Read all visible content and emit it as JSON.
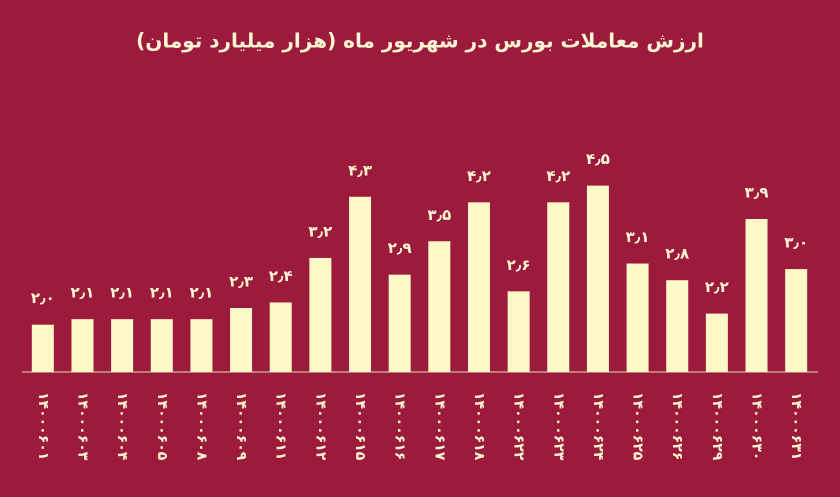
{
  "chart_data": {
    "type": "bar",
    "title": "ارزش معاملات بورس در شهریور ماه (هزار میلیارد تومان)",
    "categories": [
      "۱۴۰۰۰۶۰۱",
      "۱۴۰۰۰۶۰۳",
      "۱۴۰۰۰۶۰۴",
      "۱۴۰۰۰۶۰۵",
      "۱۴۰۰۰۶۰۸",
      "۱۴۰۰۰۶۰۹",
      "۱۴۰۰۰۶۱۱",
      "۱۴۰۰۰۶۱۲",
      "۱۴۰۰۰۶۱۵",
      "۱۴۰۰۰۶۱۶",
      "۱۴۰۰۰۶۱۷",
      "۱۴۰۰۰۶۱۸",
      "۱۴۰۰۰۶۲۲",
      "۱۴۰۰۰۶۲۳",
      "۱۴۰۰۰۶۲۴",
      "۱۴۰۰۰۶۲۵",
      "۱۴۰۰۰۶۲۶",
      "۱۴۰۰۰۶۲۹",
      "۱۴۰۰۰۶۳۰",
      "۱۴۰۰۰۶۳۱"
    ],
    "values": [
      2.0,
      2.1,
      2.1,
      2.1,
      2.1,
      2.3,
      2.4,
      3.2,
      4.3,
      2.9,
      3.5,
      4.2,
      2.6,
      4.2,
      4.5,
      3.1,
      2.8,
      2.2,
      3.9,
      3.0
    ],
    "value_labels": [
      "۲٫۰",
      "۲٫۱",
      "۲٫۱",
      "۲٫۱",
      "۲٫۱",
      "۲٫۳",
      "۲٫۴",
      "۳٫۲",
      "۴٫۳",
      "۲٫۹",
      "۳٫۵",
      "۴٫۲",
      "۲٫۶",
      "۴٫۲",
      "۴٫۵",
      "۳٫۱",
      "۲٫۸",
      "۲٫۲",
      "۳٫۹",
      "۳٫۰"
    ],
    "color": "#fdf8c8",
    "ylim": [
      1.15,
      5.5
    ]
  }
}
